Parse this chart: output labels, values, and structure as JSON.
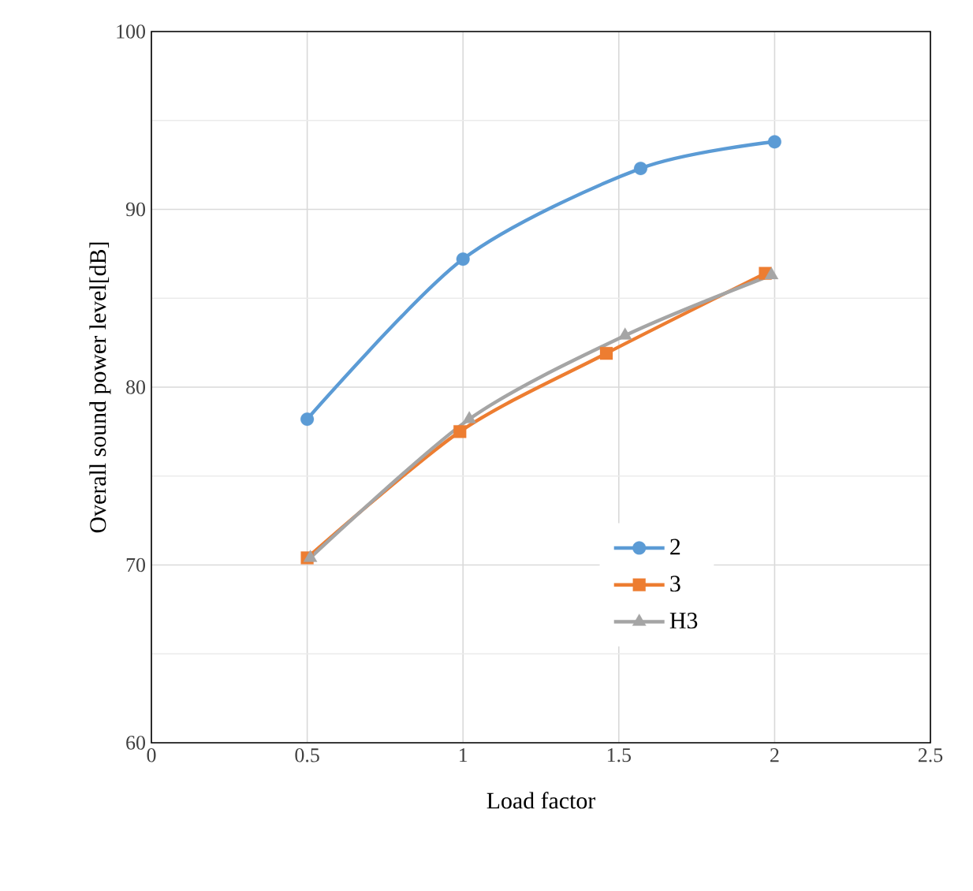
{
  "chart_data": {
    "type": "line",
    "xlabel": "Load factor",
    "ylabel": "Overall sound power level[dB]",
    "xlim": [
      0,
      2.5
    ],
    "xticks": [
      0,
      0.5,
      1,
      1.5,
      2,
      2.5
    ],
    "ylim": [
      60,
      100
    ],
    "yticks": [
      60,
      70,
      80,
      90,
      100
    ],
    "grid": true,
    "legend": "bottom right",
    "series": [
      {
        "name": "2",
        "color": "#5b9bd5",
        "marker": "circle",
        "x": [
          0.5,
          1.0,
          1.57,
          2.0
        ],
        "values": [
          78.2,
          87.2,
          92.3,
          93.8
        ]
      },
      {
        "name": "3",
        "color": "#ed7d31",
        "marker": "square",
        "x": [
          0.5,
          0.99,
          1.46,
          1.97
        ],
        "values": [
          70.4,
          77.5,
          81.9,
          86.4
        ]
      },
      {
        "name": "H3",
        "color": "#a5a5a5",
        "marker": "triangle",
        "x": [
          0.51,
          1.02,
          1.52,
          1.99
        ],
        "values": [
          70.4,
          78.2,
          82.9,
          86.3
        ]
      }
    ]
  }
}
